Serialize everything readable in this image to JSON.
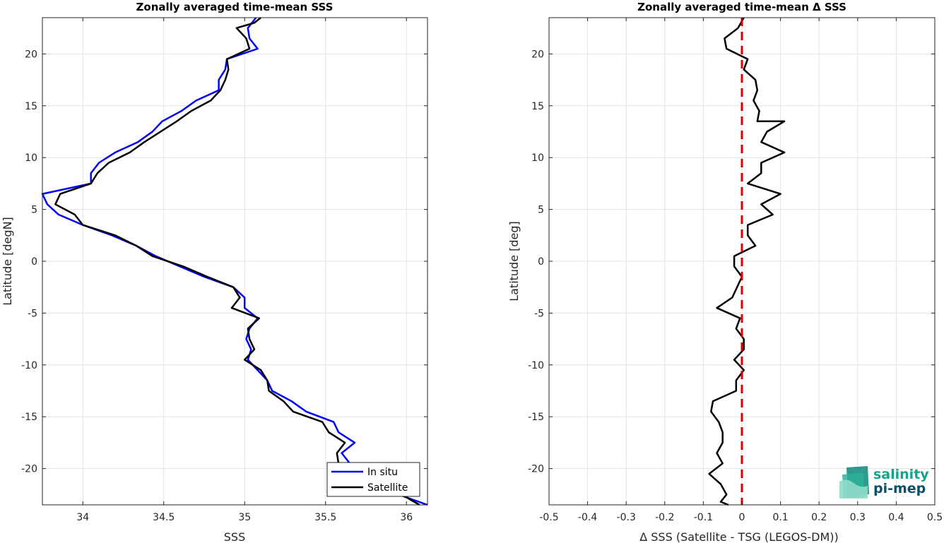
{
  "chart_data": [
    {
      "type": "line",
      "title": "Zonally averaged time-mean SSS",
      "xlabel": "SSS",
      "ylabel": "Latitude [degN]",
      "xlim": [
        33.75,
        36.13
      ],
      "ylim": [
        -23.5,
        23.5
      ],
      "xticks": [
        34,
        34.5,
        35,
        35.5,
        36
      ],
      "xtick_labels": [
        "34",
        "34.5",
        "35",
        "35.5",
        "36"
      ],
      "yticks": [
        -20,
        -15,
        -10,
        -5,
        0,
        5,
        10,
        15,
        20
      ],
      "ytick_labels": [
        "-20",
        "-15",
        "-10",
        "-5",
        "0",
        "5",
        "10",
        "15",
        "20"
      ],
      "grid": true,
      "legend": {
        "position": "bottom-right",
        "entries": [
          "In situ",
          "Satellite"
        ]
      },
      "series": [
        {
          "name": "In situ",
          "color": "#0000ff",
          "points": [
            [
              35.07,
              23.5
            ],
            [
              35.02,
              22.5
            ],
            [
              35.03,
              21.5
            ],
            [
              35.08,
              20.5
            ],
            [
              34.89,
              19.5
            ],
            [
              34.88,
              18.5
            ],
            [
              34.84,
              17.5
            ],
            [
              34.84,
              16.5
            ],
            [
              34.7,
              15.5
            ],
            [
              34.61,
              14.5
            ],
            [
              34.49,
              13.5
            ],
            [
              34.43,
              12.5
            ],
            [
              34.34,
              11.5
            ],
            [
              34.2,
              10.5
            ],
            [
              34.1,
              9.5
            ],
            [
              34.05,
              8.5
            ],
            [
              34.05,
              7.5
            ],
            [
              33.75,
              6.5
            ],
            [
              33.78,
              5.5
            ],
            [
              33.85,
              4.5
            ],
            [
              34.0,
              3.5
            ],
            [
              34.18,
              2.5
            ],
            [
              34.33,
              1.5
            ],
            [
              34.45,
              0.5
            ],
            [
              34.6,
              -0.5
            ],
            [
              34.75,
              -1.5
            ],
            [
              34.93,
              -2.5
            ],
            [
              35.0,
              -3.5
            ],
            [
              35.0,
              -4.5
            ],
            [
              35.08,
              -5.5
            ],
            [
              35.03,
              -6.5
            ],
            [
              35.01,
              -7.5
            ],
            [
              35.04,
              -8.5
            ],
            [
              35.02,
              -9.5
            ],
            [
              35.08,
              -10.5
            ],
            [
              35.14,
              -11.5
            ],
            [
              35.17,
              -12.5
            ],
            [
              35.29,
              -13.5
            ],
            [
              35.38,
              -14.5
            ],
            [
              35.55,
              -15.5
            ],
            [
              35.58,
              -16.5
            ],
            [
              35.68,
              -17.5
            ],
            [
              35.6,
              -18.5
            ],
            [
              35.65,
              -19.5
            ],
            [
              35.7,
              -20.5
            ],
            [
              35.8,
              -21.5
            ],
            [
              35.95,
              -22.5
            ],
            [
              36.13,
              -23.5
            ]
          ]
        },
        {
          "name": "Satellite",
          "color": "#000000",
          "points": [
            [
              35.1,
              23.5
            ],
            [
              35.06,
              23.0
            ],
            [
              34.95,
              22.5
            ],
            [
              35.01,
              21.5
            ],
            [
              35.03,
              20.5
            ],
            [
              34.89,
              19.5
            ],
            [
              34.9,
              18.5
            ],
            [
              34.88,
              17.5
            ],
            [
              34.85,
              16.5
            ],
            [
              34.79,
              15.5
            ],
            [
              34.67,
              14.5
            ],
            [
              34.58,
              13.5
            ],
            [
              34.48,
              12.5
            ],
            [
              34.38,
              11.5
            ],
            [
              34.29,
              10.5
            ],
            [
              34.16,
              9.5
            ],
            [
              34.09,
              8.5
            ],
            [
              34.05,
              7.5
            ],
            [
              33.86,
              6.5
            ],
            [
              33.83,
              5.5
            ],
            [
              33.95,
              4.5
            ],
            [
              34.0,
              3.5
            ],
            [
              34.2,
              2.5
            ],
            [
              34.33,
              1.5
            ],
            [
              34.43,
              0.5
            ],
            [
              34.62,
              -0.5
            ],
            [
              34.77,
              -1.5
            ],
            [
              34.93,
              -2.5
            ],
            [
              34.97,
              -3.5
            ],
            [
              34.92,
              -4.5
            ],
            [
              35.09,
              -5.5
            ],
            [
              35.02,
              -6.5
            ],
            [
              35.03,
              -7.5
            ],
            [
              35.06,
              -8.5
            ],
            [
              35.0,
              -9.5
            ],
            [
              35.1,
              -10.5
            ],
            [
              35.14,
              -11.5
            ],
            [
              35.15,
              -12.5
            ],
            [
              35.24,
              -13.5
            ],
            [
              35.3,
              -14.5
            ],
            [
              35.48,
              -15.5
            ],
            [
              35.52,
              -16.5
            ],
            [
              35.62,
              -17.5
            ],
            [
              35.57,
              -18.5
            ],
            [
              35.58,
              -19.5
            ],
            [
              35.75,
              -20.5
            ],
            [
              35.88,
              -21.5
            ],
            [
              35.97,
              -22.5
            ],
            [
              36.08,
              -23.5
            ]
          ]
        }
      ]
    },
    {
      "type": "line",
      "title": "Zonally averaged time-mean Δ SSS",
      "xlabel": "Δ SSS (Satellite - TSG (LEGOS-DM))",
      "ylabel": "Latitude [deg]",
      "xlim": [
        -0.5,
        0.5
      ],
      "ylim": [
        -23.5,
        23.5
      ],
      "xticks": [
        -0.5,
        -0.4,
        -0.3,
        -0.2,
        -0.1,
        0,
        0.1,
        0.2,
        0.3,
        0.4,
        0.5
      ],
      "xtick_labels": [
        "-0.5",
        "-0.4",
        "-0.3",
        "-0.2",
        "-0.1",
        "0",
        "0.1",
        "0.2",
        "0.3",
        "0.4",
        "0.5"
      ],
      "yticks": [
        -20,
        -15,
        -10,
        -5,
        0,
        5,
        10,
        15,
        20
      ],
      "ytick_labels": [
        "-20",
        "-15",
        "-10",
        "-5",
        "0",
        "5",
        "10",
        "15",
        "20"
      ],
      "grid": true,
      "reference_line": {
        "x": 0,
        "color": "#e00000",
        "style": "dashed"
      },
      "series": [
        {
          "color": "#000000",
          "points": [
            [
              0.005,
              23.5
            ],
            [
              -0.01,
              22.5
            ],
            [
              -0.045,
              21.5
            ],
            [
              -0.04,
              20.5
            ],
            [
              0.015,
              19.5
            ],
            [
              0.005,
              18.5
            ],
            [
              0.035,
              17.5
            ],
            [
              0.04,
              16.5
            ],
            [
              0.03,
              15.5
            ],
            [
              0.045,
              14.5
            ],
            [
              0.04,
              13.5
            ],
            [
              0.11,
              13.5
            ],
            [
              0.065,
              12.5
            ],
            [
              0.05,
              11.5
            ],
            [
              0.11,
              10.5
            ],
            [
              0.05,
              9.5
            ],
            [
              0.05,
              8.5
            ],
            [
              0.015,
              7.5
            ],
            [
              0.1,
              6.5
            ],
            [
              0.05,
              5.5
            ],
            [
              0.08,
              4.5
            ],
            [
              0.015,
              3.5
            ],
            [
              0.015,
              2.5
            ],
            [
              0.035,
              1.5
            ],
            [
              -0.02,
              0.5
            ],
            [
              -0.02,
              -0.5
            ],
            [
              0.0,
              -1.5
            ],
            [
              -0.025,
              -3.5
            ],
            [
              -0.065,
              -4.5
            ],
            [
              -0.005,
              -5.5
            ],
            [
              -0.015,
              -6.5
            ],
            [
              0.005,
              -7.5
            ],
            [
              0.005,
              -8.5
            ],
            [
              -0.02,
              -9.5
            ],
            [
              0.005,
              -10.5
            ],
            [
              -0.015,
              -11.5
            ],
            [
              -0.015,
              -12.5
            ],
            [
              -0.075,
              -13.5
            ],
            [
              -0.08,
              -14.5
            ],
            [
              -0.06,
              -15.5
            ],
            [
              -0.05,
              -16.5
            ],
            [
              -0.05,
              -17.5
            ],
            [
              -0.065,
              -18.5
            ],
            [
              -0.05,
              -19.5
            ],
            [
              -0.085,
              -20.5
            ],
            [
              -0.055,
              -21.5
            ],
            [
              -0.04,
              -22.5
            ],
            [
              -0.055,
              -23.2
            ],
            [
              -0.035,
              -23.5
            ]
          ]
        }
      ]
    }
  ],
  "logo": {
    "line1": "salinity",
    "line2": "pi-mep",
    "color1": "#12a58c",
    "color2": "#0d4f66"
  }
}
